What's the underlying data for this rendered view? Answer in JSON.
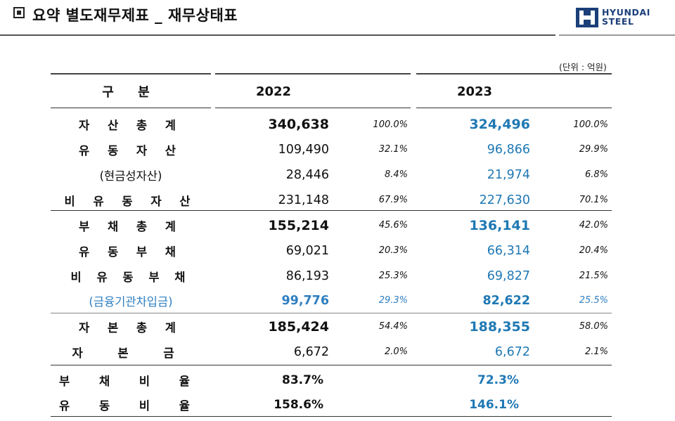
{
  "header": {
    "title": "요약 별도재무제표 _ 재무상태표",
    "logo_line1": "HYUNDAI",
    "logo_line2": "STEEL",
    "brand_color": "#1b3f79"
  },
  "unit_note": "(단위 : 억원)",
  "table": {
    "col_header": "구 분",
    "years": [
      "2022",
      "2023"
    ],
    "accent_color": "#1f78b4",
    "rows": [
      {
        "label": "자 산 총 계",
        "v2022": "340,638",
        "p2022": "100.0%",
        "v2023": "324,496",
        "p2023": "100.0%"
      },
      {
        "label": "유 동 자 산",
        "v2022": "109,490",
        "p2022": "32.1%",
        "v2023": "96,866",
        "p2023": "29.9%"
      },
      {
        "label": "(현금성자산)",
        "v2022": "28,446",
        "p2022": "8.4%",
        "v2023": "21,974",
        "p2023": "6.8%"
      },
      {
        "label": "비 유 동 자 산",
        "v2022": "231,148",
        "p2022": "67.9%",
        "v2023": "227,630",
        "p2023": "70.1%"
      },
      {
        "label": "부 채 총 계",
        "v2022": "155,214",
        "p2022": "45.6%",
        "v2023": "136,141",
        "p2023": "42.0%"
      },
      {
        "label": "유 동 부 채",
        "v2022": "69,021",
        "p2022": "20.3%",
        "v2023": "66,314",
        "p2023": "20.4%"
      },
      {
        "label": "비 유 동 부 채",
        "v2022": "86,193",
        "p2022": "25.3%",
        "v2023": "69,827",
        "p2023": "21.5%"
      },
      {
        "label": "(금융기관차입금)",
        "v2022": "99,776",
        "p2022": "29.3%",
        "v2023": "82,622",
        "p2023": "25.5%"
      },
      {
        "label": "자 본 총 계",
        "v2022": "185,424",
        "p2022": "54.4%",
        "v2023": "188,355",
        "p2023": "58.0%"
      },
      {
        "label": "자 본 금",
        "v2022": "6,672",
        "p2022": "2.0%",
        "v2023": "6,672",
        "p2023": "2.1%"
      },
      {
        "label": "부 채 비 율",
        "v2022": "83.7%",
        "v2023": "72.3%"
      },
      {
        "label": "유 동 비 율",
        "v2022": "158.6%",
        "v2023": "146.1%"
      }
    ]
  }
}
